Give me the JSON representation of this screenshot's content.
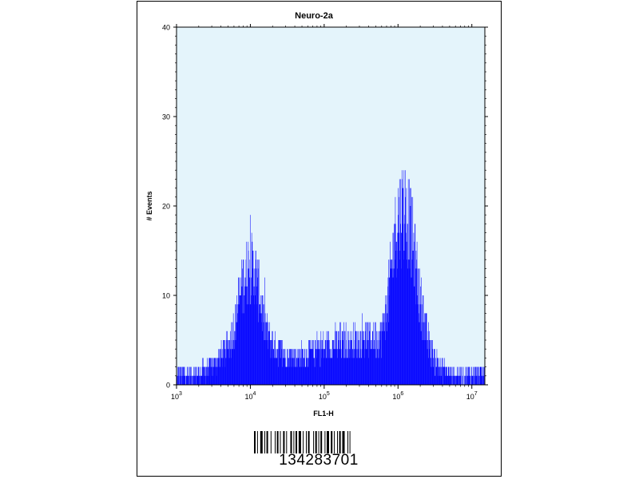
{
  "chart_data": {
    "type": "histogram",
    "title": "Neuro-2a",
    "xlabel": "FL1-H",
    "ylabel": "# Events",
    "x_scale": "log",
    "xlim": [
      1000,
      15000000
    ],
    "ylim": [
      0,
      40
    ],
    "y_ticks": [
      "0",
      "10",
      "20",
      "30",
      "40"
    ],
    "x_ticks": [
      {
        "base": "10",
        "exp": "3"
      },
      {
        "base": "10",
        "exp": "4"
      },
      {
        "base": "10",
        "exp": "5"
      },
      {
        "base": "10",
        "exp": "6"
      },
      {
        "base": "10",
        "exp": "7"
      }
    ],
    "fill_color": "#0000ff",
    "plot_background": "#e4f4fb",
    "series": [
      {
        "x": [
          1000,
          1500,
          2000,
          2500,
          3000,
          3500,
          4000,
          5000,
          6000,
          7000,
          8000,
          9000,
          10000,
          11000,
          12000,
          13000,
          14000,
          15000,
          17000,
          20000,
          25000,
          30000,
          40000,
          50000,
          70000,
          100000,
          150000,
          200000,
          300000,
          400000,
          500000,
          600000,
          700000,
          800000,
          900000,
          1000000,
          1200000,
          1400000,
          1600000,
          1800000,
          2000000,
          2500000,
          3000000,
          4000000,
          6000000,
          10000000,
          15000000
        ],
        "values": [
          1,
          1,
          1.2,
          1.5,
          2,
          2.5,
          3,
          4,
          6,
          9,
          11,
          12.5,
          13,
          12.5,
          11.5,
          10,
          8.5,
          7,
          5.5,
          4.5,
          3.5,
          3,
          3,
          3,
          3.5,
          4,
          4.5,
          4.5,
          4.5,
          5,
          5,
          5.5,
          8,
          12,
          16,
          18,
          19,
          18,
          15,
          12,
          9,
          5,
          3,
          1.5,
          1,
          1,
          1
        ]
      }
    ]
  },
  "barcode": {
    "number": "134283701"
  }
}
